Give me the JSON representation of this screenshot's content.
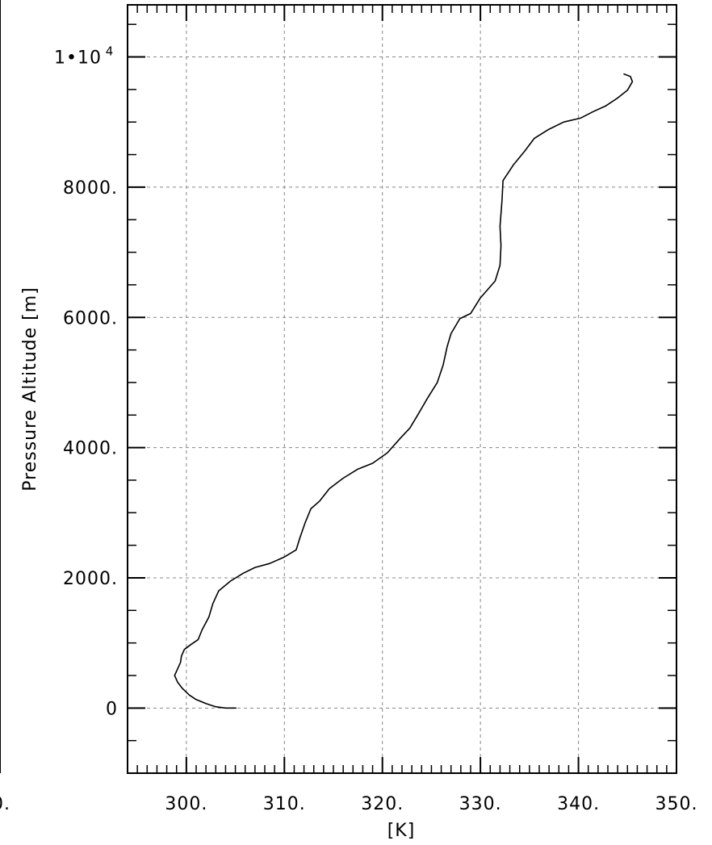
{
  "chart_data": {
    "type": "line",
    "title": "",
    "xlabel": "[K]",
    "ylabel": "Pressure Altitude [m]",
    "xlim": [
      294,
      350
    ],
    "ylim": [
      -1000,
      10800
    ],
    "grid": true,
    "colors": {
      "line": "#000000",
      "grid": "#888888",
      "axis": "#000000"
    },
    "x_ticks": [
      {
        "value": 300,
        "label": "300."
      },
      {
        "value": 310,
        "label": "310."
      },
      {
        "value": 320,
        "label": "320."
      },
      {
        "value": 330,
        "label": "330."
      },
      {
        "value": 340,
        "label": "340."
      },
      {
        "value": 350,
        "label": "350."
      }
    ],
    "left_edge_label": "0.",
    "y_ticks": [
      {
        "value": 0,
        "label": "0"
      },
      {
        "value": 2000,
        "label": "2000."
      },
      {
        "value": 4000,
        "label": "4000."
      },
      {
        "value": 6000,
        "label": "6000."
      },
      {
        "value": 8000,
        "label": "8000."
      },
      {
        "value": 10000,
        "label": "1•10",
        "exponent": "4"
      }
    ],
    "series": [
      {
        "points": [
          [
            305.1,
            0
          ],
          [
            304.0,
            0
          ],
          [
            303.0,
            20
          ],
          [
            302.0,
            70
          ],
          [
            301.0,
            130
          ],
          [
            300.3,
            200
          ],
          [
            299.6,
            300
          ],
          [
            299.1,
            400
          ],
          [
            298.8,
            500
          ],
          [
            299.1,
            600
          ],
          [
            299.4,
            700
          ],
          [
            299.5,
            800
          ],
          [
            299.8,
            900
          ],
          [
            300.5,
            980
          ],
          [
            301.2,
            1050
          ],
          [
            301.6,
            1200
          ],
          [
            302.3,
            1400
          ],
          [
            302.7,
            1600
          ],
          [
            303.3,
            1800
          ],
          [
            304.5,
            1950
          ],
          [
            305.8,
            2070
          ],
          [
            307.0,
            2160
          ],
          [
            308.5,
            2220
          ],
          [
            310.0,
            2320
          ],
          [
            311.2,
            2430
          ],
          [
            311.6,
            2620
          ],
          [
            312.1,
            2840
          ],
          [
            312.7,
            3060
          ],
          [
            313.6,
            3180
          ],
          [
            314.6,
            3370
          ],
          [
            316.0,
            3530
          ],
          [
            317.5,
            3670
          ],
          [
            319.0,
            3760
          ],
          [
            320.5,
            3920
          ],
          [
            321.8,
            4140
          ],
          [
            322.8,
            4300
          ],
          [
            323.6,
            4500
          ],
          [
            324.6,
            4760
          ],
          [
            325.6,
            5000
          ],
          [
            326.2,
            5270
          ],
          [
            326.6,
            5550
          ],
          [
            327.0,
            5750
          ],
          [
            327.9,
            5980
          ],
          [
            329.0,
            6060
          ],
          [
            330.0,
            6300
          ],
          [
            331.5,
            6560
          ],
          [
            332.0,
            6800
          ],
          [
            332.1,
            7100
          ],
          [
            332.0,
            7400
          ],
          [
            332.2,
            7800
          ],
          [
            332.3,
            8100
          ],
          [
            333.4,
            8350
          ],
          [
            334.5,
            8550
          ],
          [
            335.5,
            8750
          ],
          [
            337.0,
            8890
          ],
          [
            338.5,
            9000
          ],
          [
            340.2,
            9060
          ],
          [
            341.5,
            9160
          ],
          [
            342.8,
            9250
          ],
          [
            344.0,
            9370
          ],
          [
            345.0,
            9490
          ],
          [
            345.5,
            9620
          ],
          [
            345.3,
            9700
          ],
          [
            344.6,
            9740
          ]
        ]
      }
    ]
  }
}
